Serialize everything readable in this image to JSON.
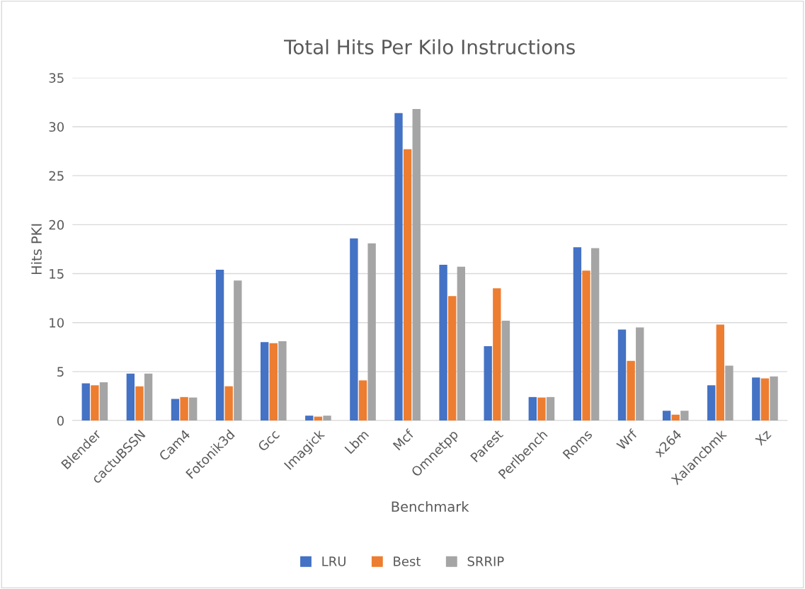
{
  "chart_data": {
    "type": "bar",
    "title": "Total Hits Per Kilo Instructions",
    "xlabel": "Benchmark",
    "ylabel": "Hits PKI",
    "categories": [
      "Blender",
      "cactuBSSN",
      "Cam4",
      "Fotonik3d",
      "Gcc",
      "Imagick",
      "Lbm",
      "Mcf",
      "Omnetpp",
      "Parest",
      "Perlbench",
      "Roms",
      "Wrf",
      "x264",
      "Xalancbmk",
      "Xz"
    ],
    "series": [
      {
        "name": "LRU",
        "color": "#4472c4",
        "values": [
          3.8,
          4.8,
          2.2,
          15.4,
          8.0,
          0.5,
          18.6,
          31.4,
          15.9,
          7.6,
          2.4,
          17.7,
          9.3,
          1.0,
          3.6,
          4.4
        ]
      },
      {
        "name": "Best",
        "color": "#ed7d31",
        "values": [
          3.6,
          3.5,
          2.4,
          3.5,
          7.9,
          0.4,
          4.1,
          27.7,
          12.7,
          13.5,
          2.35,
          15.3,
          6.1,
          0.6,
          9.8,
          4.3
        ]
      },
      {
        "name": "SRRIP",
        "color": "#a5a5a5",
        "values": [
          3.9,
          4.8,
          2.35,
          14.3,
          8.1,
          0.5,
          18.1,
          31.8,
          15.7,
          10.2,
          2.4,
          17.6,
          9.5,
          1.0,
          5.6,
          4.5
        ]
      }
    ],
    "ylim": [
      0,
      35
    ],
    "yticks": [
      0,
      5,
      10,
      15,
      20,
      25,
      30,
      35
    ],
    "grid": "y",
    "legend": "bottom"
  }
}
